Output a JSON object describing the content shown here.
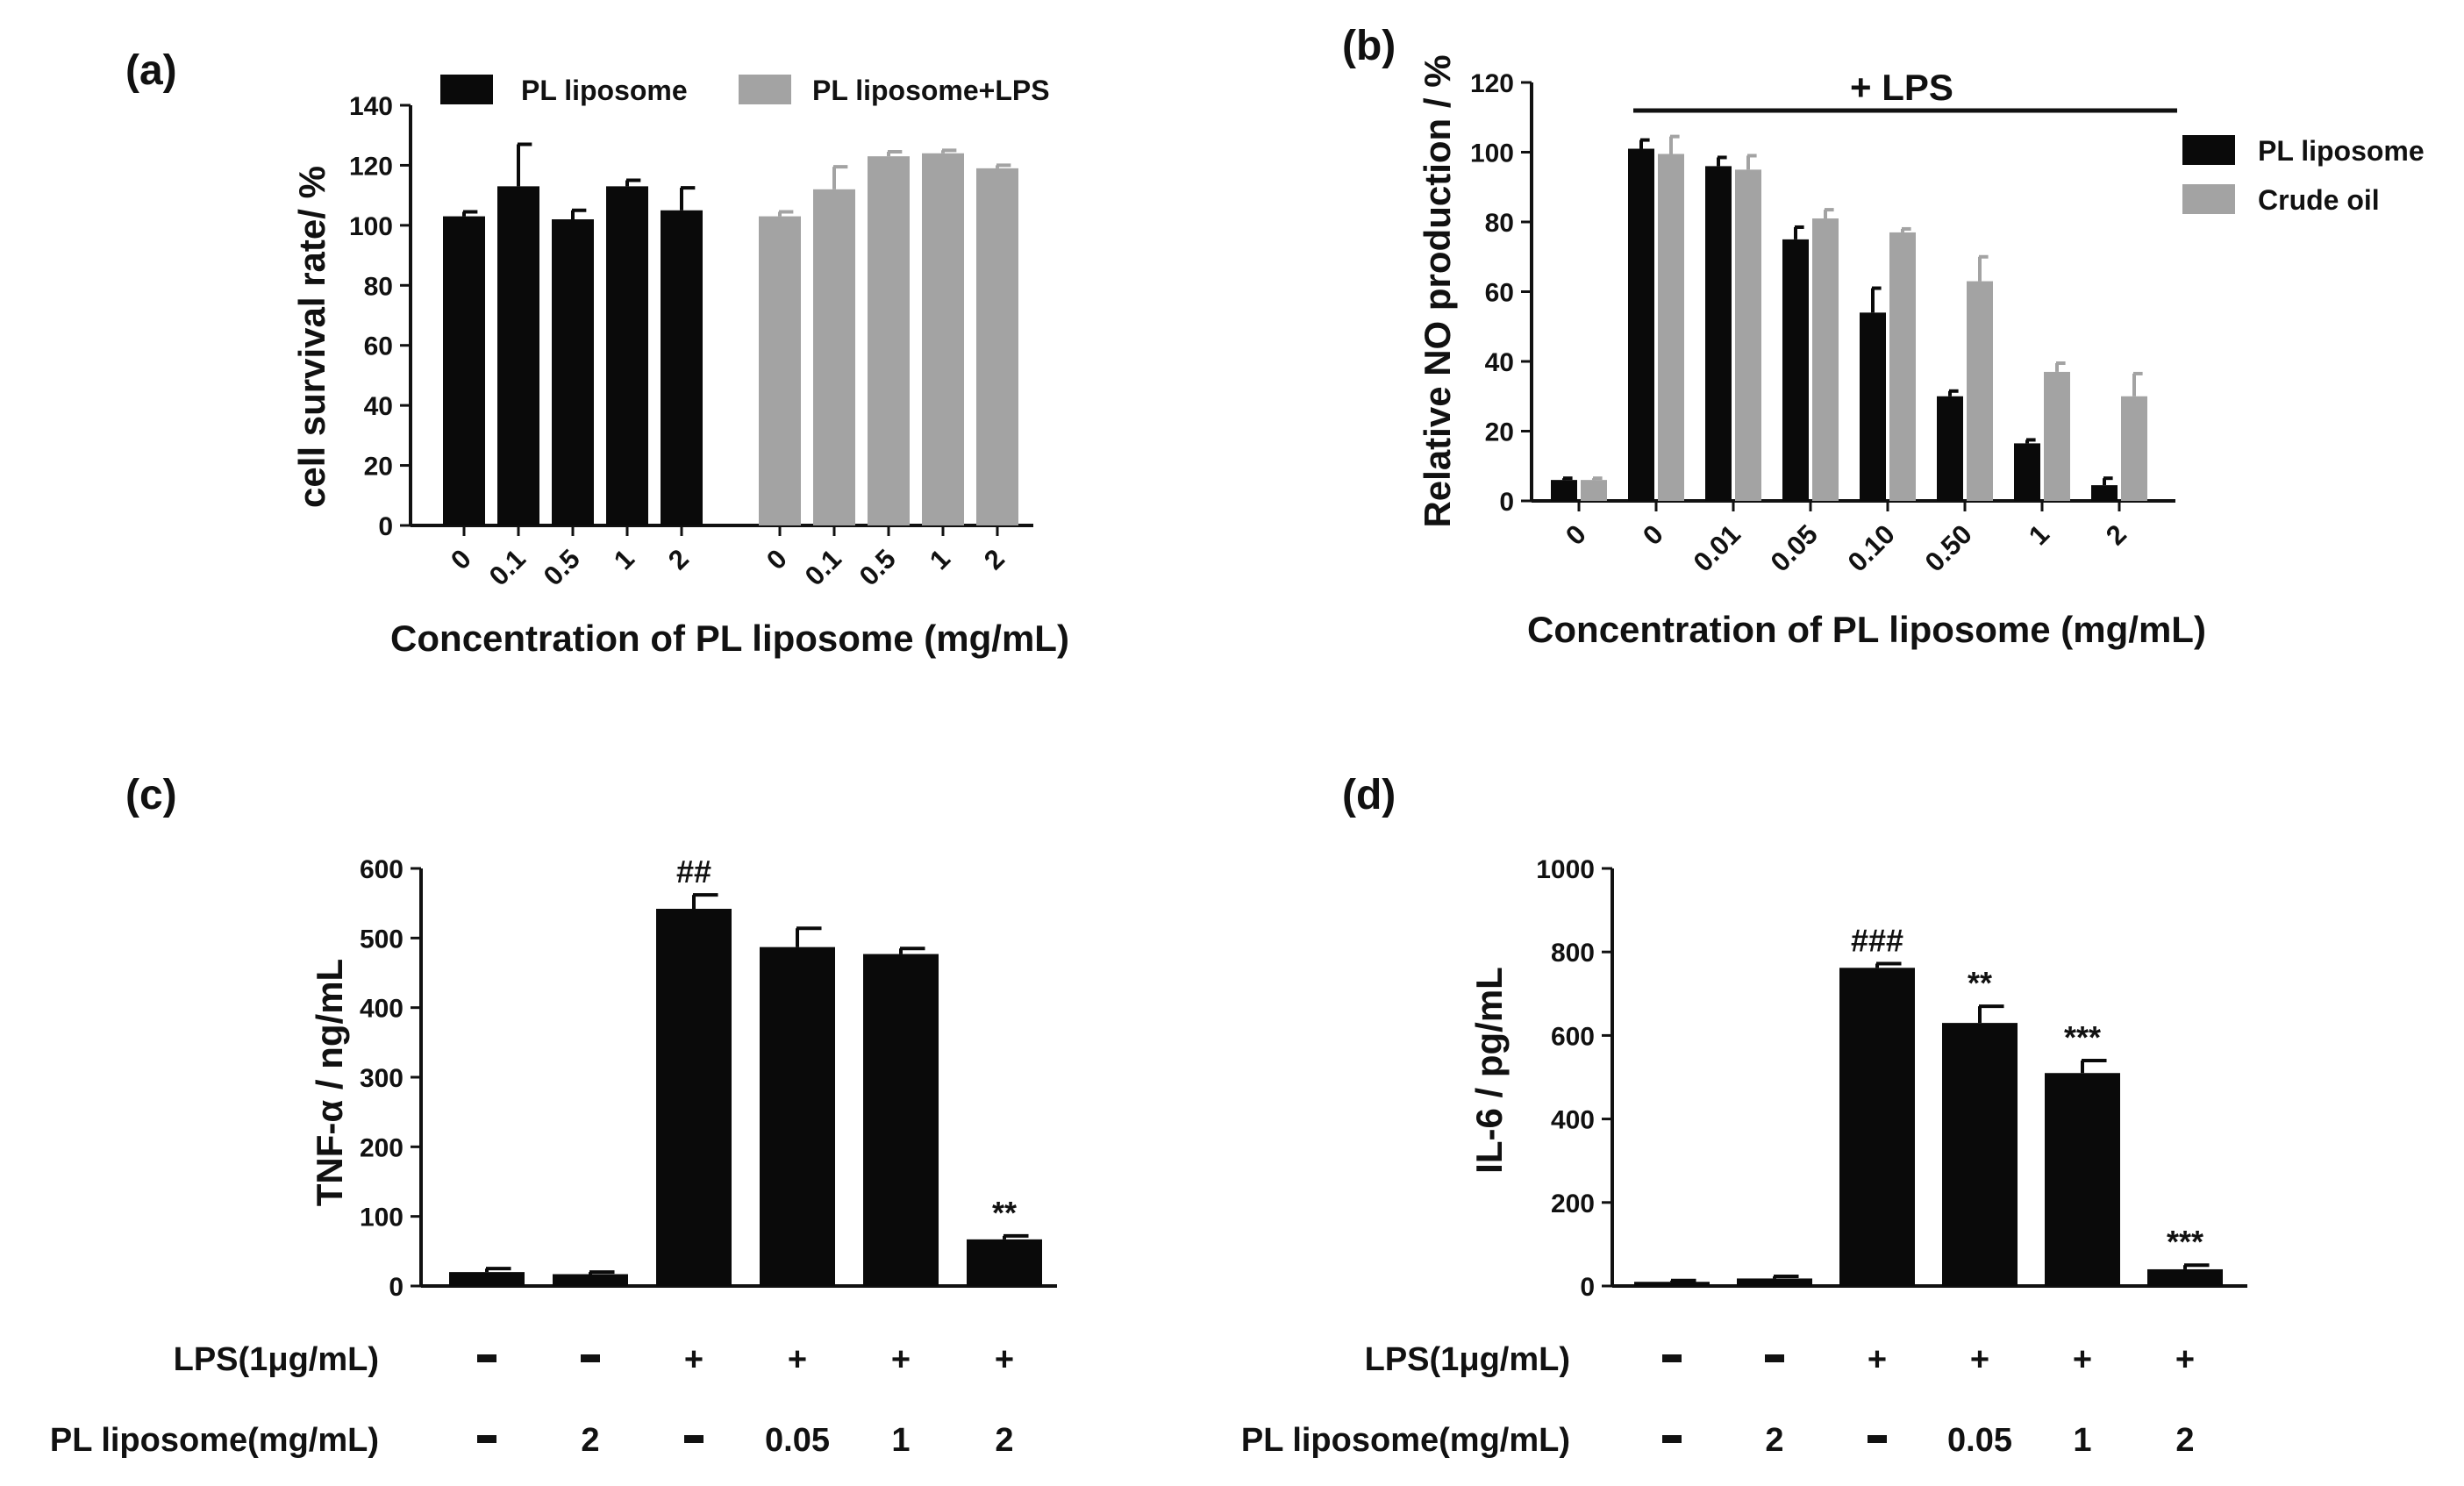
{
  "chart_data": [
    {
      "panel": "(a)",
      "type": "bar",
      "ylabel": "cell survival rate/ %",
      "xlabel": "Concentration of PL liposome (mg/mL)",
      "ylim": [
        0,
        140
      ],
      "yticks": [
        0,
        20,
        40,
        60,
        80,
        100,
        120,
        140
      ],
      "legend": [
        "PL liposome",
        "PL liposome+LPS"
      ],
      "colors": [
        "#0a0a0a",
        "#a3a3a3"
      ],
      "bars": [
        {
          "label": "0",
          "value": 103,
          "err": 1.5,
          "series": 0
        },
        {
          "label": "0.1",
          "value": 113,
          "err": 14,
          "series": 0
        },
        {
          "label": "0.5",
          "value": 102,
          "err": 3,
          "series": 0
        },
        {
          "label": "1",
          "value": 113,
          "err": 2,
          "series": 0
        },
        {
          "label": "2",
          "value": 105,
          "err": 7.5,
          "series": 0
        },
        {
          "label": "0",
          "value": 103,
          "err": 1.5,
          "series": 1
        },
        {
          "label": "0.1",
          "value": 112,
          "err": 7.5,
          "series": 1
        },
        {
          "label": "0.5",
          "value": 123,
          "err": 1.5,
          "series": 1
        },
        {
          "label": "1",
          "value": 124,
          "err": 1,
          "series": 1
        },
        {
          "label": "2",
          "value": 119,
          "err": 1,
          "series": 1
        }
      ]
    },
    {
      "panel": "(b)",
      "type": "bar",
      "ylabel": "Relative NO production / %",
      "xlabel": "Concentration of PL liposome (mg/mL)",
      "ylim": [
        0,
        120
      ],
      "yticks": [
        0,
        20,
        40,
        60,
        80,
        100,
        120
      ],
      "annotation": "+ LPS",
      "series": [
        {
          "name": "PL liposome",
          "color": "#0a0a0a",
          "values": [
            6,
            101,
            96,
            75,
            54,
            30,
            16.5,
            4.5
          ],
          "err": [
            0.5,
            2.5,
            2.5,
            3.5,
            7,
            1.5,
            1,
            2
          ]
        },
        {
          "name": "Crude oil",
          "color": "#a3a3a3",
          "values": [
            6,
            99.5,
            95,
            81,
            77,
            63,
            37,
            30
          ],
          "err": [
            0.5,
            5,
            4,
            2.5,
            1,
            7,
            2.5,
            6.5
          ]
        }
      ],
      "categories": [
        "0",
        "0",
        "0.01",
        "0.05",
        "0.10",
        "0.50",
        "1",
        "2"
      ]
    },
    {
      "panel": "(c)",
      "type": "bar",
      "ylabel": "TNF-α  / ng/mL",
      "ylim": [
        0,
        600
      ],
      "yticks": [
        0,
        100,
        200,
        300,
        400,
        500,
        600
      ],
      "values": [
        20,
        17,
        542,
        487,
        477,
        67
      ],
      "err": [
        5,
        3,
        20,
        27,
        8,
        5
      ],
      "color": "#0a0a0a",
      "significance": [
        "",
        "",
        "##",
        "",
        "",
        "**"
      ],
      "table_rows": [
        {
          "label": "LPS(1μg/mL)",
          "cells": [
            "-",
            "-",
            "+",
            "+",
            "+",
            "+"
          ]
        },
        {
          "label": "PL liposome(mg/mL)",
          "cells": [
            "-",
            "2",
            "-",
            "0.05",
            "1",
            "2"
          ]
        }
      ]
    },
    {
      "panel": "(d)",
      "type": "bar",
      "ylabel": "IL-6 / pg/mL",
      "ylim": [
        0,
        1000
      ],
      "yticks": [
        0,
        200,
        400,
        600,
        800,
        1000
      ],
      "values": [
        10,
        18,
        762,
        630,
        510,
        40
      ],
      "err": [
        3,
        5,
        10,
        40,
        30,
        10
      ],
      "color": "#0a0a0a",
      "significance": [
        "",
        "",
        "###",
        "**",
        "***",
        "***"
      ],
      "table_rows": [
        {
          "label": "LPS(1μg/mL)",
          "cells": [
            "-",
            "-",
            "+",
            "+",
            "+",
            "+"
          ]
        },
        {
          "label": "PL liposome(mg/mL)",
          "cells": [
            "-",
            "2",
            "-",
            "0.05",
            "1",
            "2"
          ]
        }
      ]
    }
  ]
}
